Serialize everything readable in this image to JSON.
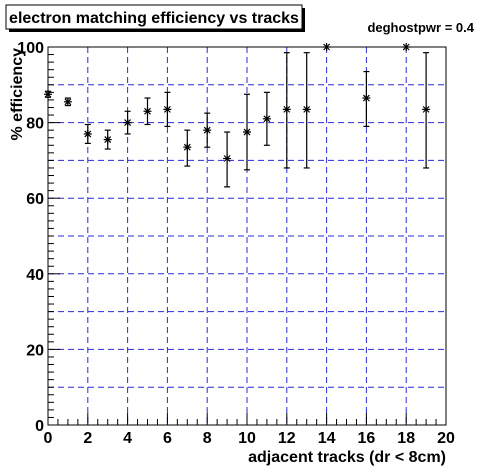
{
  "chart_data": {
    "type": "scatter",
    "title": "electron matching efficiency vs tracks",
    "annotation": "deghostpwr = 0.4",
    "xlabel": "adjacent tracks (dr < 8cm)",
    "ylabel": "% efficiency",
    "xlim": [
      0,
      20
    ],
    "ylim": [
      0,
      100
    ],
    "x_ticks": [
      "0",
      "2",
      "4",
      "6",
      "8",
      "10",
      "12",
      "14",
      "16",
      "18",
      "20"
    ],
    "y_ticks": [
      "0",
      "20",
      "40",
      "60",
      "80",
      "100"
    ],
    "grid": true,
    "grid_color": "#2b2bd9",
    "marker": "asterisk",
    "points": [
      {
        "x": 0,
        "y": 87.5,
        "err_low": 0.8,
        "err_high": 0.8
      },
      {
        "x": 1,
        "y": 85.5,
        "err_low": 1.0,
        "err_high": 1.0
      },
      {
        "x": 2,
        "y": 77.0,
        "err_low": 2.5,
        "err_high": 2.5
      },
      {
        "x": 3,
        "y": 75.5,
        "err_low": 2.5,
        "err_high": 2.5
      },
      {
        "x": 4,
        "y": 80.0,
        "err_low": 3.0,
        "err_high": 3.0
      },
      {
        "x": 5,
        "y": 83.0,
        "err_low": 3.5,
        "err_high": 3.5
      },
      {
        "x": 6,
        "y": 83.5,
        "err_low": 4.5,
        "err_high": 4.5
      },
      {
        "x": 7,
        "y": 73.5,
        "err_low": 5.0,
        "err_high": 4.5
      },
      {
        "x": 8,
        "y": 78.0,
        "err_low": 4.5,
        "err_high": 4.5
      },
      {
        "x": 9,
        "y": 70.5,
        "err_low": 7.5,
        "err_high": 7.0
      },
      {
        "x": 10,
        "y": 77.5,
        "err_low": 10.0,
        "err_high": 10.0
      },
      {
        "x": 11,
        "y": 81.0,
        "err_low": 7.0,
        "err_high": 7.0
      },
      {
        "x": 12,
        "y": 83.5,
        "err_low": 15.5,
        "err_high": 15.0
      },
      {
        "x": 13,
        "y": 83.5,
        "err_low": 15.5,
        "err_high": 15.0
      },
      {
        "x": 14,
        "y": 100.0,
        "err_low": 0,
        "err_high": 0
      },
      {
        "x": 16,
        "y": 86.5,
        "err_low": 7.5,
        "err_high": 7.0
      },
      {
        "x": 18,
        "y": 100.0,
        "err_low": 0,
        "err_high": 0
      },
      {
        "x": 19,
        "y": 83.5,
        "err_low": 15.5,
        "err_high": 15.0
      }
    ]
  }
}
